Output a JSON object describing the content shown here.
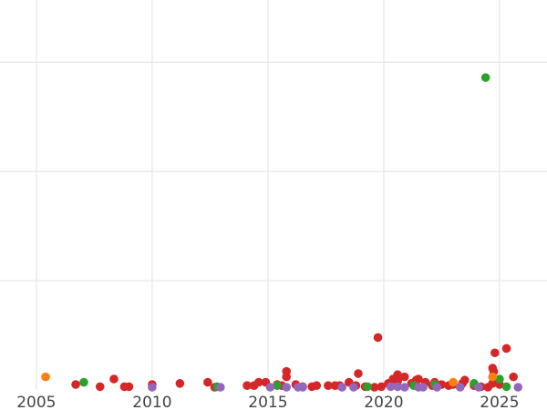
{
  "chart_data": {
    "type": "scatter",
    "title": "",
    "xlabel": "",
    "ylabel": "",
    "xlim": [
      2003.43,
      2027.05
    ],
    "ylim": [
      0,
      3.57
    ],
    "xticks": [
      2005,
      2010,
      2015,
      2020,
      2025
    ],
    "xtick_labels": [
      "2005",
      "2010",
      "2015",
      "2020",
      "2025"
    ],
    "yticks": [
      1,
      2,
      3
    ],
    "grid": true,
    "legend": "none",
    "series": [
      {
        "color": "#d62728",
        "points": [
          [
            2006.7,
            0.05
          ],
          [
            2007.75,
            0.03
          ],
          [
            2008.35,
            0.1
          ],
          [
            2008.8,
            0.03
          ],
          [
            2009.0,
            0.03
          ],
          [
            2010.0,
            0.05
          ],
          [
            2011.2,
            0.06
          ],
          [
            2012.4,
            0.07
          ],
          [
            2012.7,
            0.02
          ],
          [
            2014.1,
            0.04
          ],
          [
            2014.4,
            0.04
          ],
          [
            2014.6,
            0.07
          ],
          [
            2014.9,
            0.07
          ],
          [
            2015.4,
            0.05
          ],
          [
            2015.6,
            0.04
          ],
          [
            2015.8,
            0.12
          ],
          [
            2015.8,
            0.17
          ],
          [
            2016.2,
            0.05
          ],
          [
            2016.5,
            0.03
          ],
          [
            2016.9,
            0.03
          ],
          [
            2017.1,
            0.04
          ],
          [
            2017.6,
            0.04
          ],
          [
            2017.9,
            0.04
          ],
          [
            2018.1,
            0.04
          ],
          [
            2018.5,
            0.07
          ],
          [
            2018.8,
            0.04
          ],
          [
            2018.9,
            0.15
          ],
          [
            2019.2,
            0.03
          ],
          [
            2019.6,
            0.02
          ],
          [
            2019.75,
            0.48
          ],
          [
            2019.9,
            0.03
          ],
          [
            2020.2,
            0.06
          ],
          [
            2020.4,
            0.1
          ],
          [
            2020.6,
            0.14
          ],
          [
            2020.6,
            0.08
          ],
          [
            2020.9,
            0.12
          ],
          [
            2021.2,
            0.06
          ],
          [
            2021.4,
            0.09
          ],
          [
            2021.5,
            0.1
          ],
          [
            2021.8,
            0.07
          ],
          [
            2022.1,
            0.04
          ],
          [
            2022.2,
            0.07
          ],
          [
            2022.5,
            0.05
          ],
          [
            2022.8,
            0.04
          ],
          [
            2023.0,
            0.05
          ],
          [
            2023.4,
            0.06
          ],
          [
            2023.5,
            0.09
          ],
          [
            2023.9,
            0.04
          ],
          [
            2024.2,
            0.03
          ],
          [
            2024.5,
            0.02
          ],
          [
            2024.7,
            0.06
          ],
          [
            2024.7,
            0.2
          ],
          [
            2024.75,
            0.17
          ],
          [
            2024.8,
            0.34
          ],
          [
            2025.0,
            0.05
          ],
          [
            2025.3,
            0.38
          ],
          [
            2025.6,
            0.12
          ]
        ]
      },
      {
        "color": "#2ca02c",
        "points": [
          [
            2007.05,
            0.07
          ],
          [
            2012.8,
            0.03
          ],
          [
            2015.4,
            0.04
          ],
          [
            2019.3,
            0.03
          ],
          [
            2021.3,
            0.04
          ],
          [
            2022.2,
            0.05
          ],
          [
            2023.9,
            0.06
          ],
          [
            2024.4,
            2.86
          ],
          [
            2025.0,
            0.1
          ],
          [
            2025.3,
            0.03
          ]
        ]
      },
      {
        "color": "#ff7f0e",
        "points": [
          [
            2005.4,
            0.12
          ],
          [
            2023.0,
            0.07
          ],
          [
            2024.7,
            0.12
          ]
        ]
      },
      {
        "color": "#9467bd",
        "points": [
          [
            2010.0,
            0.02
          ],
          [
            2012.95,
            0.02
          ],
          [
            2015.1,
            0.02
          ],
          [
            2015.8,
            0.02
          ],
          [
            2016.3,
            0.02
          ],
          [
            2016.5,
            0.02
          ],
          [
            2018.2,
            0.02
          ],
          [
            2018.7,
            0.02
          ],
          [
            2020.3,
            0.03
          ],
          [
            2020.6,
            0.03
          ],
          [
            2020.9,
            0.02
          ],
          [
            2021.5,
            0.02
          ],
          [
            2021.7,
            0.02
          ],
          [
            2022.3,
            0.02
          ],
          [
            2023.3,
            0.02
          ],
          [
            2024.1,
            0.02
          ],
          [
            2025.8,
            0.02
          ]
        ]
      }
    ]
  }
}
